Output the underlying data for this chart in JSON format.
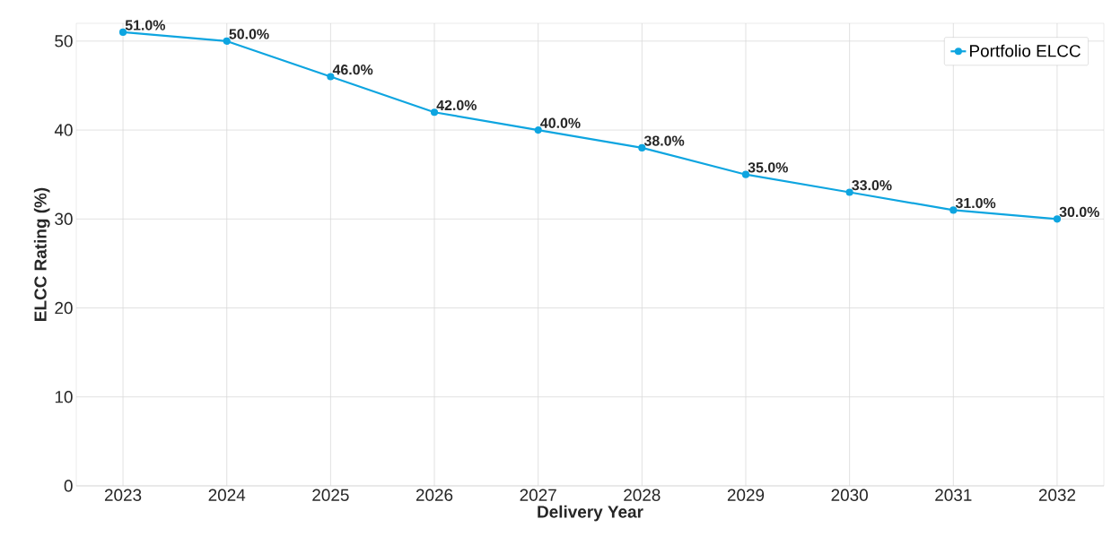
{
  "chart_data": {
    "type": "line",
    "xlabel": "Delivery Year",
    "ylabel": "ELCC Rating (%)",
    "x": [
      2023,
      2024,
      2025,
      2026,
      2027,
      2028,
      2029,
      2030,
      2031,
      2032
    ],
    "series": [
      {
        "name": "Portfolio ELCC",
        "color": "#0ea5e0",
        "values": [
          51,
          50,
          46,
          42,
          40,
          38,
          35,
          33,
          31,
          30
        ],
        "value_labels": [
          "51.0%",
          "50.0%",
          "46.0%",
          "42.0%",
          "40.0%",
          "38.0%",
          "35.0%",
          "33.0%",
          "31.0%",
          "30.0%"
        ]
      }
    ],
    "xlim": [
      2022.55,
      2032.45
    ],
    "ylim": [
      0,
      52
    ],
    "xticks": [
      2023,
      2024,
      2025,
      2026,
      2027,
      2028,
      2029,
      2030,
      2031,
      2032
    ],
    "yticks": [
      0,
      10,
      20,
      30,
      40,
      50
    ],
    "grid": true,
    "legend": "top right",
    "marker": "circle",
    "line_style": "solid"
  }
}
